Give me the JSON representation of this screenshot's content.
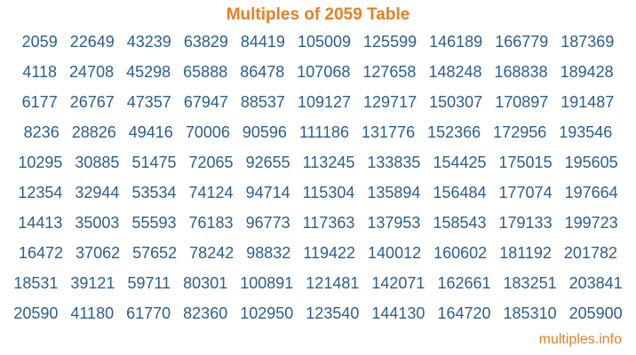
{
  "page": {
    "title": "Multiples of 2059 Table",
    "footer_link": "multiples.info"
  },
  "colors": {
    "accent_orange": "#e87e22",
    "number_blue": "#2b5e8c",
    "background": "#ffffff"
  },
  "table": {
    "description": "Multiples of 2059 from 1x to 100x, arranged column-major (each column counts down 10 consecutive multiples)",
    "rows": [
      [
        "2059",
        "22649",
        "43239",
        "63829",
        "84419",
        "105009",
        "125599",
        "146189",
        "166779",
        "187369"
      ],
      [
        "4118",
        "24708",
        "45298",
        "65888",
        "86478",
        "107068",
        "127658",
        "148248",
        "168838",
        "189428"
      ],
      [
        "6177",
        "26767",
        "47357",
        "67947",
        "88537",
        "109127",
        "129717",
        "150307",
        "170897",
        "191487"
      ],
      [
        "8236",
        "28826",
        "49416",
        "70006",
        "90596",
        "111186",
        "131776",
        "152366",
        "172956",
        "193546"
      ],
      [
        "10295",
        "30885",
        "51475",
        "72065",
        "92655",
        "113245",
        "133835",
        "154425",
        "175015",
        "195605"
      ],
      [
        "12354",
        "32944",
        "53534",
        "74124",
        "94714",
        "115304",
        "135894",
        "156484",
        "177074",
        "197664"
      ],
      [
        "14413",
        "35003",
        "55593",
        "76183",
        "96773",
        "117363",
        "137953",
        "158543",
        "179133",
        "199723"
      ],
      [
        "16472",
        "37062",
        "57652",
        "78242",
        "98832",
        "119422",
        "140012",
        "160602",
        "181192",
        "201782"
      ],
      [
        "18531",
        "39121",
        "59711",
        "80301",
        "100891",
        "121481",
        "142071",
        "162661",
        "183251",
        "203841"
      ],
      [
        "20590",
        "41180",
        "61770",
        "82360",
        "102950",
        "123540",
        "144130",
        "164720",
        "185310",
        "205900"
      ]
    ]
  }
}
